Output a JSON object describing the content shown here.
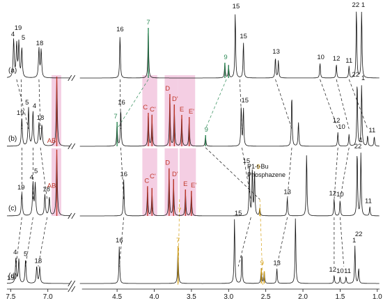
{
  "chart_data": {
    "type": "line",
    "title": "",
    "xlabel": "",
    "ylabel": "",
    "xlim": [
      7.55,
      0.97
    ],
    "x_axis_reversed": true,
    "axis_break_at": [
      6.7,
      5.0
    ],
    "ticks": [
      7.5,
      7.0,
      6.5,
      4.5,
      4.0,
      3.5,
      3.0,
      2.5,
      2.0,
      1.5,
      1.0
    ],
    "tick_labels": [
      "7.5",
      "7.0",
      "6.5",
      "4.5",
      "4.0",
      "3.5",
      "3.0",
      "2.5",
      "2.0",
      "1.5",
      "1.0"
    ],
    "colors": {
      "spectrum": "#111111",
      "ab_shade": "#f2c6de",
      "red": "#c0392b",
      "green": "#2e8b57",
      "orange": "#d4a017"
    },
    "series": [
      {
        "label": "(a)",
        "peaks": [
          {
            "ppm": 7.46,
            "h": 0.55
          },
          {
            "ppm": 7.42,
            "h": 0.48
          },
          {
            "ppm": 7.39,
            "h": 0.5
          },
          {
            "ppm": 7.35,
            "h": 0.42
          },
          {
            "ppm": 7.12,
            "h": 0.42
          },
          {
            "ppm": 7.09,
            "h": 0.4
          },
          {
            "ppm": 4.46,
            "h": 0.62
          },
          {
            "ppm": 4.08,
            "h": 0.72
          },
          {
            "ppm": 3.05,
            "h": 0.22
          },
          {
            "ppm": 3.0,
            "h": 0.18
          },
          {
            "ppm": 2.91,
            "h": 0.95
          },
          {
            "ppm": 2.8,
            "h": 0.52
          },
          {
            "ppm": 2.37,
            "h": 0.3
          },
          {
            "ppm": 2.33,
            "h": 0.25
          },
          {
            "ppm": 1.77,
            "h": 0.22
          },
          {
            "ppm": 1.55,
            "h": 0.2
          },
          {
            "ppm": 1.38,
            "h": 0.17
          },
          {
            "ppm": 1.28,
            "h": 1.0
          },
          {
            "ppm": 1.21,
            "h": 0.98
          }
        ],
        "labels": [
          {
            "text": "4",
            "ppm": 7.47
          },
          {
            "text": "19",
            "ppm": 7.4
          },
          {
            "text": "5",
            "ppm": 7.33
          },
          {
            "text": "18",
            "ppm": 7.11
          },
          {
            "text": "16",
            "ppm": 4.46
          },
          {
            "text": "7",
            "ppm": 4.08,
            "color": "green"
          },
          {
            "text": "9",
            "ppm": 3.04,
            "color": "green"
          },
          {
            "text": "15",
            "ppm": 2.9
          },
          {
            "text": "15",
            "ppm": 2.8
          },
          {
            "text": "13",
            "ppm": 2.36
          },
          {
            "text": "10",
            "ppm": 1.76
          },
          {
            "text": "12",
            "ppm": 1.55
          },
          {
            "text": "11",
            "ppm": 1.38
          },
          {
            "text": "22",
            "ppm": 1.29
          },
          {
            "text": "1",
            "ppm": 1.19
          }
        ]
      },
      {
        "label": "(b)",
        "peaks": [
          {
            "ppm": 7.35,
            "h": 0.4
          },
          {
            "ppm": 7.26,
            "h": 0.55
          },
          {
            "ppm": 7.2,
            "h": 0.5
          },
          {
            "ppm": 7.12,
            "h": 0.33
          },
          {
            "ppm": 7.08,
            "h": 0.3
          },
          {
            "ppm": 6.88,
            "h": 1.0
          },
          {
            "ppm": 4.5,
            "h": 0.35
          },
          {
            "ppm": 4.45,
            "h": 0.55
          },
          {
            "ppm": 4.08,
            "h": 0.48
          },
          {
            "ppm": 4.03,
            "h": 0.45
          },
          {
            "ppm": 3.79,
            "h": 0.75
          },
          {
            "ppm": 3.73,
            "h": 0.6
          },
          {
            "ppm": 3.63,
            "h": 0.45
          },
          {
            "ppm": 3.53,
            "h": 0.42
          },
          {
            "ppm": 3.31,
            "h": 0.16
          },
          {
            "ppm": 2.83,
            "h": 0.58
          },
          {
            "ppm": 2.8,
            "h": 0.55
          },
          {
            "ppm": 2.15,
            "h": 0.75
          },
          {
            "ppm": 2.06,
            "h": 0.35
          },
          {
            "ppm": 1.53,
            "h": 0.2
          },
          {
            "ppm": 1.38,
            "h": 0.17
          },
          {
            "ppm": 1.27,
            "h": 0.95
          },
          {
            "ppm": 1.21,
            "h": 0.9
          },
          {
            "ppm": 1.13,
            "h": 0.15
          },
          {
            "ppm": 1.04,
            "h": 0.14
          }
        ],
        "labels": [
          {
            "text": "19",
            "ppm": 7.37
          },
          {
            "text": "5",
            "ppm": 7.28
          },
          {
            "text": "4",
            "ppm": 7.18
          },
          {
            "text": "18",
            "ppm": 7.1
          },
          {
            "text": "AB",
            "ppm": 6.95,
            "color": "red"
          },
          {
            "text": "7",
            "ppm": 4.52,
            "color": "green"
          },
          {
            "text": "16",
            "ppm": 4.44
          },
          {
            "text": "C",
            "ppm": 4.12,
            "color": "red"
          },
          {
            "text": "C'",
            "ppm": 4.02,
            "color": "red"
          },
          {
            "text": "D",
            "ppm": 3.82,
            "color": "red"
          },
          {
            "text": "D'",
            "ppm": 3.72,
            "color": "red"
          },
          {
            "text": "E",
            "ppm": 3.63,
            "color": "red"
          },
          {
            "text": "E'",
            "ppm": 3.5,
            "color": "red"
          },
          {
            "text": "9",
            "ppm": 3.3,
            "color": "green"
          },
          {
            "text": "15",
            "ppm": 2.78
          },
          {
            "text": "10",
            "ppm": 1.48
          },
          {
            "text": "12",
            "ppm": 1.55
          },
          {
            "text": "11",
            "ppm": 1.07
          },
          {
            "text": "22",
            "ppm": 1.29
          },
          {
            "text": "1",
            "ppm": 1.19
          }
        ]
      },
      {
        "label": "(c)",
        "peaks": [
          {
            "ppm": 7.35,
            "h": 0.35
          },
          {
            "ppm": 7.2,
            "h": 0.5
          },
          {
            "ppm": 7.17,
            "h": 0.48
          },
          {
            "ppm": 7.04,
            "h": 0.32
          },
          {
            "ppm": 6.98,
            "h": 0.28
          },
          {
            "ppm": 6.88,
            "h": 1.0
          },
          {
            "ppm": 4.41,
            "h": 0.55
          },
          {
            "ppm": 4.09,
            "h": 0.45
          },
          {
            "ppm": 4.03,
            "h": 0.42
          },
          {
            "ppm": 3.8,
            "h": 0.72
          },
          {
            "ppm": 3.74,
            "h": 0.55
          },
          {
            "ppm": 3.58,
            "h": 0.4
          },
          {
            "ppm": 3.5,
            "h": 0.38
          },
          {
            "ppm": 2.72,
            "h": 0.75
          },
          {
            "ppm": 2.68,
            "h": 0.72
          },
          {
            "ppm": 2.65,
            "h": 0.66
          },
          {
            "ppm": 2.58,
            "h": 0.12
          },
          {
            "ppm": 2.21,
            "h": 0.28
          },
          {
            "ppm": 1.95,
            "h": 0.95
          },
          {
            "ppm": 1.58,
            "h": 0.26
          },
          {
            "ppm": 1.5,
            "h": 0.24
          },
          {
            "ppm": 1.27,
            "h": 1.0
          },
          {
            "ppm": 1.22,
            "h": 0.95
          },
          {
            "ppm": 1.1,
            "h": 0.14
          }
        ],
        "labels": [
          {
            "text": "19",
            "ppm": 7.36
          },
          {
            "text": "4",
            "ppm": 7.22
          },
          {
            "text": "5",
            "ppm": 7.16
          },
          {
            "text": "18",
            "ppm": 7.02
          },
          {
            "text": "AB",
            "ppm": 6.95,
            "color": "red"
          },
          {
            "text": "16",
            "ppm": 4.41
          },
          {
            "text": "C",
            "ppm": 4.1,
            "color": "red"
          },
          {
            "text": "C'",
            "ppm": 4.02,
            "color": "red"
          },
          {
            "text": "D",
            "ppm": 3.82,
            "color": "red"
          },
          {
            "text": "D'",
            "ppm": 3.72,
            "color": "red"
          },
          {
            "text": "7",
            "ppm": 3.66,
            "color": "orange"
          },
          {
            "text": "E",
            "ppm": 3.58,
            "color": "red"
          },
          {
            "text": "E'",
            "ppm": 3.47,
            "color": "red"
          },
          {
            "text": "15",
            "ppm": 2.76
          },
          {
            "text": "9",
            "ppm": 2.6,
            "color": "orange"
          },
          {
            "text": "13",
            "ppm": 2.21
          },
          {
            "text": "12",
            "ppm": 1.6
          },
          {
            "text": "10",
            "ppm": 1.5
          },
          {
            "text": "11",
            "ppm": 1.12
          },
          {
            "text": "22",
            "ppm": 1.26
          },
          {
            "text": "1",
            "ppm": 1.22
          },
          {
            "text": "P1-t-Bu",
            "ppm": 2.75
          },
          {
            "text": "Phosphazene",
            "ppm": 2.75
          }
        ]
      },
      {
        "label": "(d)",
        "peaks": [
          {
            "ppm": 7.43,
            "h": 0.38
          },
          {
            "ppm": 7.39,
            "h": 0.35
          },
          {
            "ppm": 7.3,
            "h": 0.35
          },
          {
            "ppm": 7.15,
            "h": 0.25
          },
          {
            "ppm": 7.11,
            "h": 0.24
          },
          {
            "ppm": 4.47,
            "h": 0.55
          },
          {
            "ppm": 3.68,
            "h": 0.55
          },
          {
            "ppm": 2.92,
            "h": 0.95
          },
          {
            "ppm": 2.82,
            "h": 0.45
          },
          {
            "ppm": 2.56,
            "h": 0.22
          },
          {
            "ppm": 2.52,
            "h": 0.18
          },
          {
            "ppm": 2.35,
            "h": 0.22
          },
          {
            "ppm": 2.1,
            "h": 0.98
          },
          {
            "ppm": 1.58,
            "h": 0.12
          },
          {
            "ppm": 1.5,
            "h": 0.1
          },
          {
            "ppm": 1.42,
            "h": 0.1
          },
          {
            "ppm": 1.3,
            "h": 0.55
          },
          {
            "ppm": 1.25,
            "h": 0.22
          }
        ],
        "labels": [
          {
            "text": "4",
            "ppm": 7.44
          },
          {
            "text": "19",
            "ppm": 7.5
          },
          {
            "text": "5",
            "ppm": 7.3
          },
          {
            "text": "18",
            "ppm": 7.13
          },
          {
            "text": "16",
            "ppm": 4.47
          },
          {
            "text": "7",
            "ppm": 3.68,
            "color": "orange"
          },
          {
            "text": "15",
            "ppm": 2.87
          },
          {
            "text": "9",
            "ppm": 2.55,
            "color": "orange"
          },
          {
            "text": "13",
            "ppm": 2.35
          },
          {
            "text": "12",
            "ppm": 1.6
          },
          {
            "text": "10",
            "ppm": 1.5
          },
          {
            "text": "11",
            "ppm": 1.4
          },
          {
            "text": "1",
            "ppm": 1.31
          },
          {
            "text": "22",
            "ppm": 1.25
          }
        ]
      }
    ]
  }
}
